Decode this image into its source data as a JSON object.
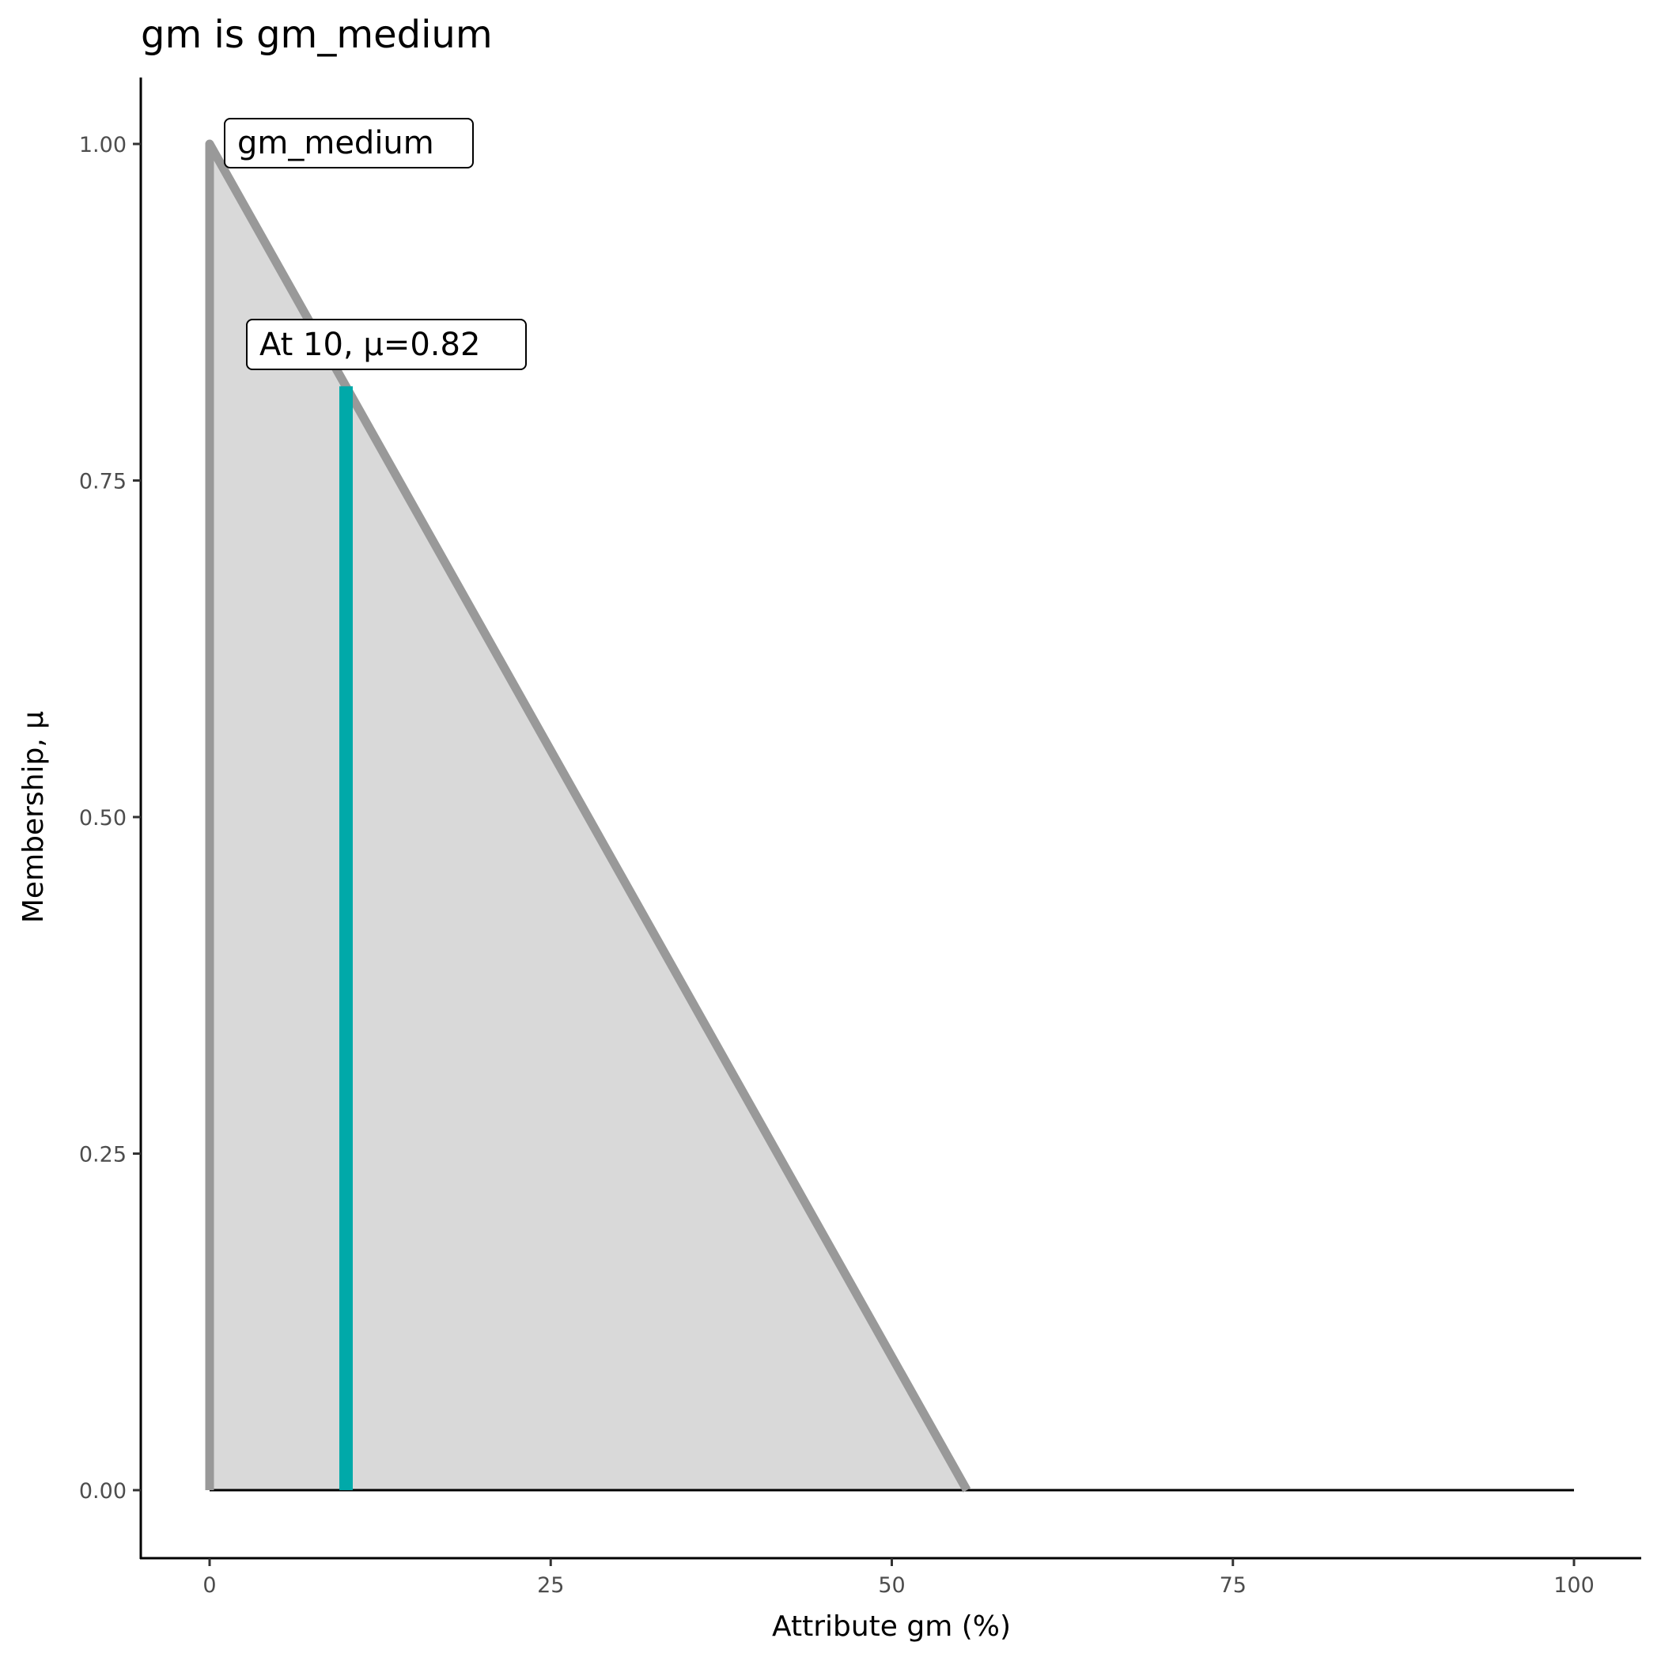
{
  "chart_data": {
    "type": "area",
    "title": "gm is gm_medium",
    "xlabel": "Attribute gm (%)",
    "ylabel": "Membership, μ",
    "xlim": [
      -5,
      105
    ],
    "ylim": [
      -0.05,
      1.05
    ],
    "xticks": [
      "0",
      "25",
      "50",
      "75",
      "100"
    ],
    "xtick_values": [
      0,
      25,
      50,
      75,
      100
    ],
    "yticks": [
      "0.00",
      "0.25",
      "0.50",
      "0.75",
      "1.00"
    ],
    "ytick_values": [
      0,
      0.25,
      0.5,
      0.75,
      1
    ],
    "grid": false,
    "series": [
      {
        "name": "gm_medium",
        "x": [
          0,
          0,
          55.5,
          100
        ],
        "y": [
          0,
          1,
          0,
          0
        ]
      }
    ],
    "marker": {
      "x": 10,
      "mu": 0.82,
      "label": "At 10, μ=0.82"
    },
    "set_label": "gm_medium",
    "colors": {
      "fill": "#d9d9d9",
      "line": "#999999",
      "marker": "#00a9a9",
      "baseline": "#000000"
    }
  }
}
